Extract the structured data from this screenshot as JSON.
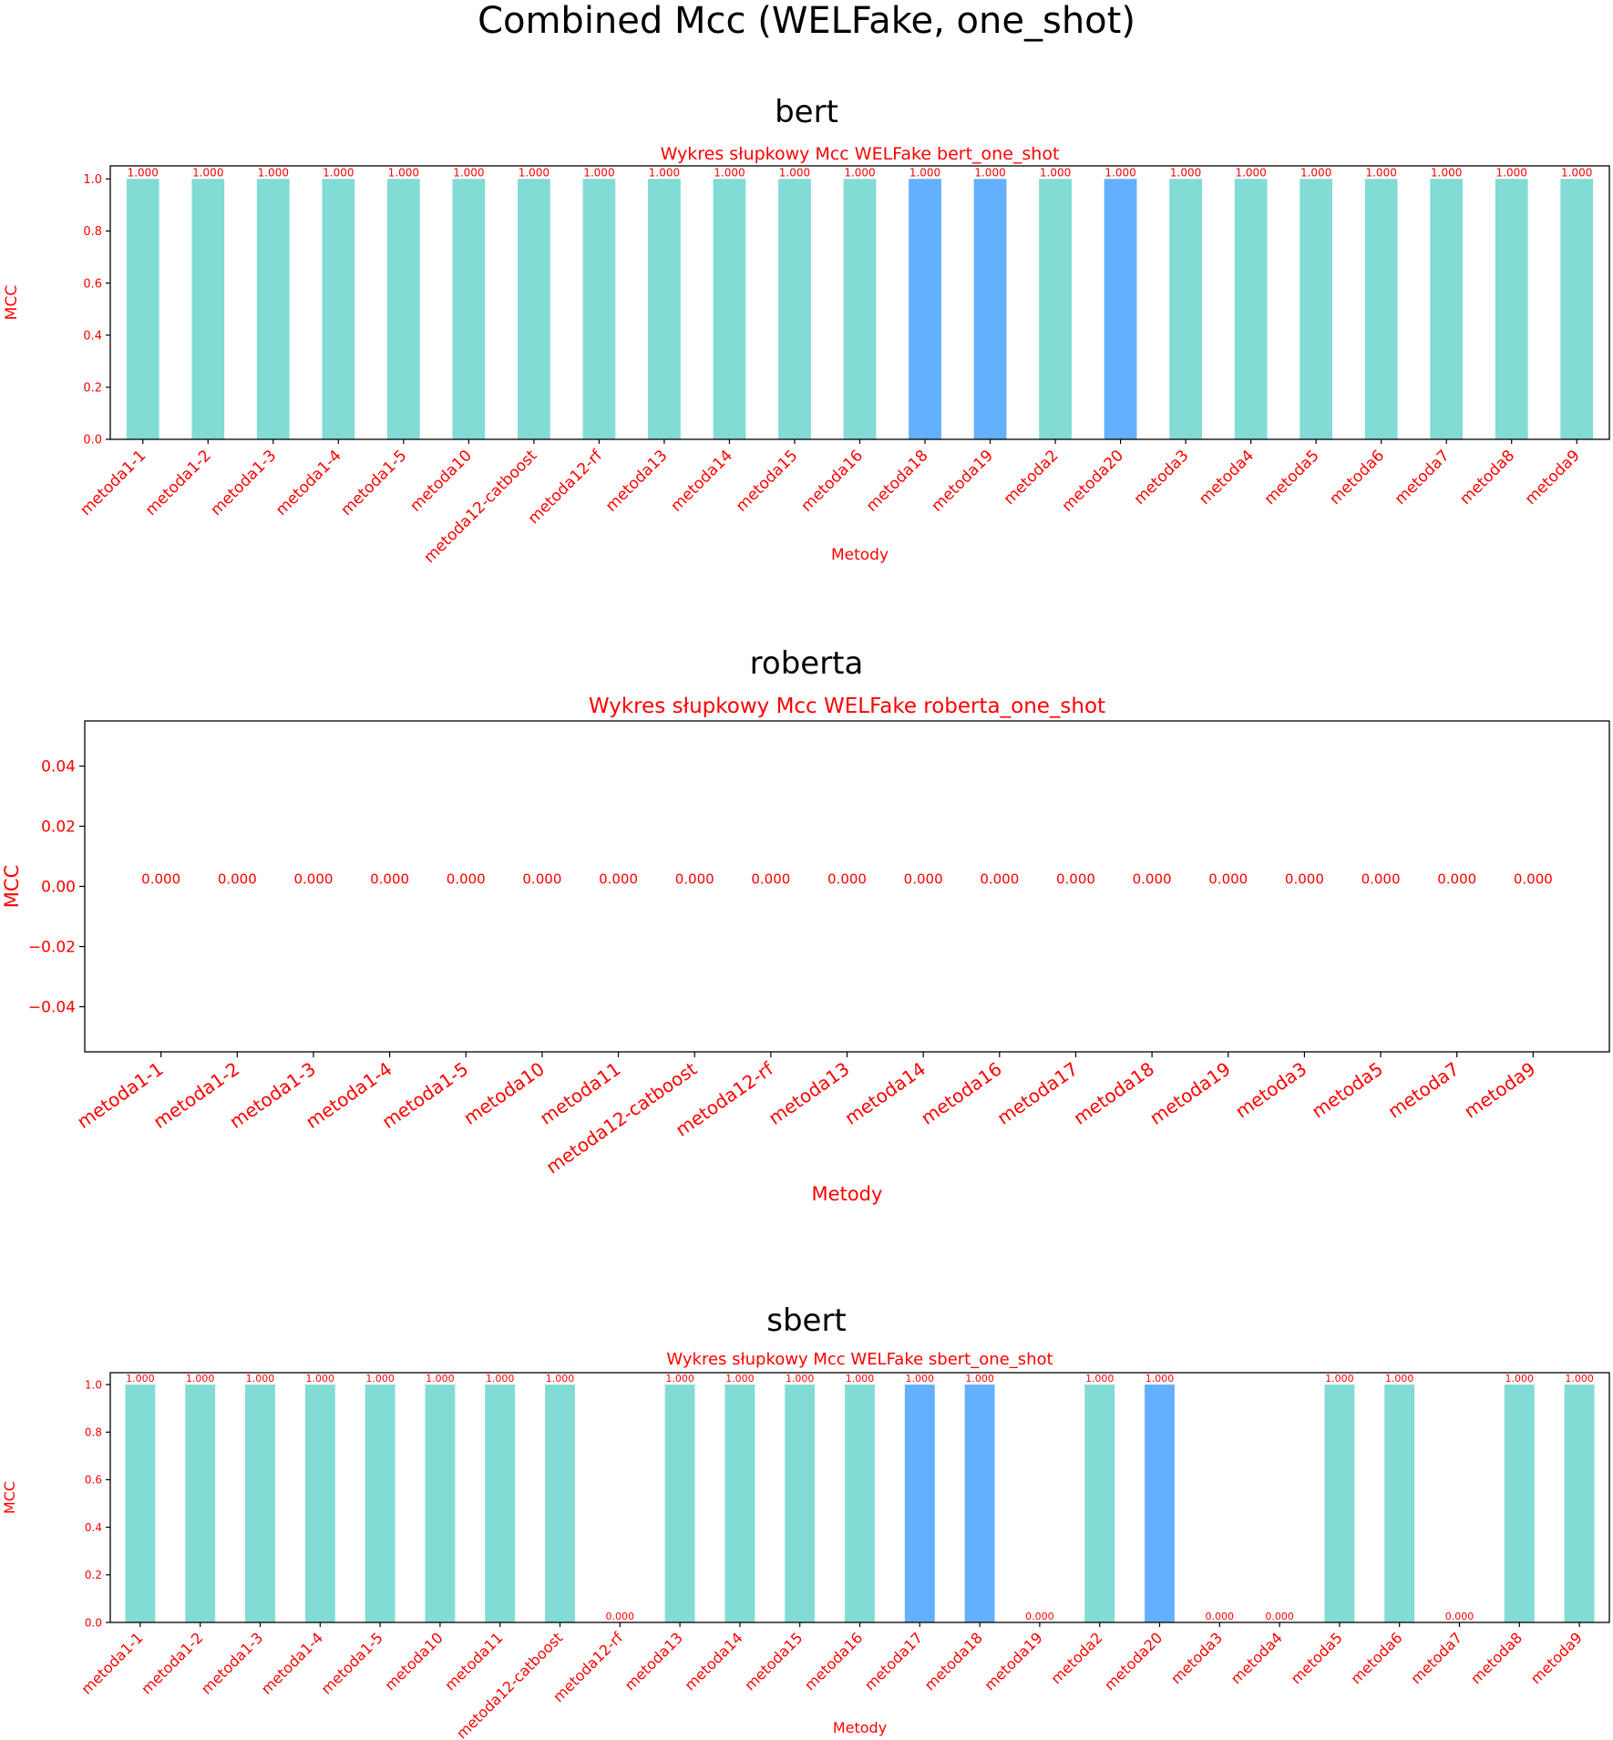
{
  "figure_title": "Combined Mcc (WELFake, one_shot)",
  "colors": {
    "text_accent": "#ff0000",
    "bar_default": "#82dbd5",
    "bar_highlight": "#63b0ff",
    "axis": "#000000"
  },
  "chart_data": [
    {
      "type": "bar",
      "panel_title": "bert",
      "title": "Wykres słupkowy Mcc WELFake bert_one_shot",
      "xlabel": "Metody",
      "ylabel": "MCC",
      "ylim": [
        0,
        1.05
      ],
      "yticks": [
        0.0,
        0.2,
        0.4,
        0.6,
        0.8,
        1.0
      ],
      "ytick_labels": [
        "0.0",
        "0.2",
        "0.4",
        "0.6",
        "0.8",
        "1.0"
      ],
      "grid": false,
      "categories": [
        "metoda1-1",
        "metoda1-2",
        "metoda1-3",
        "metoda1-4",
        "metoda1-5",
        "metoda10",
        "metoda12-catboost",
        "metoda12-rf",
        "metoda13",
        "metoda14",
        "metoda15",
        "metoda16",
        "metoda18",
        "metoda19",
        "metoda2",
        "metoda20",
        "metoda3",
        "metoda4",
        "metoda5",
        "metoda6",
        "metoda7",
        "metoda8",
        "metoda9"
      ],
      "values": [
        1,
        1,
        1,
        1,
        1,
        1,
        1,
        1,
        1,
        1,
        1,
        1,
        1,
        1,
        1,
        1,
        1,
        1,
        1,
        1,
        1,
        1,
        1
      ],
      "value_labels": [
        "1.000",
        "1.000",
        "1.000",
        "1.000",
        "1.000",
        "1.000",
        "1.000",
        "1.000",
        "1.000",
        "1.000",
        "1.000",
        "1.000",
        "1.000",
        "1.000",
        "1.000",
        "1.000",
        "1.000",
        "1.000",
        "1.000",
        "1.000",
        "1.000",
        "1.000",
        "1.000"
      ],
      "highlighted": [
        "metoda18",
        "metoda19",
        "metoda20"
      ]
    },
    {
      "type": "bar",
      "panel_title": "roberta",
      "title": "Wykres słupkowy Mcc WELFake roberta_one_shot",
      "xlabel": "Metody",
      "ylabel": "MCC",
      "ylim": [
        -0.055,
        0.055
      ],
      "yticks": [
        -0.04,
        -0.02,
        0.0,
        0.02,
        0.04
      ],
      "ytick_labels": [
        "−0.04",
        "−0.02",
        "0.00",
        "0.02",
        "0.04"
      ],
      "grid": false,
      "categories": [
        "metoda1-1",
        "metoda1-2",
        "metoda1-3",
        "metoda1-4",
        "metoda1-5",
        "metoda10",
        "metoda11",
        "metoda12-catboost",
        "metoda12-rf",
        "metoda13",
        "metoda14",
        "metoda16",
        "metoda17",
        "metoda18",
        "metoda19",
        "metoda3",
        "metoda5",
        "metoda7",
        "metoda9"
      ],
      "values": [
        0,
        0,
        0,
        0,
        0,
        0,
        0,
        0,
        0,
        0,
        0,
        0,
        0,
        0,
        0,
        0,
        0,
        0,
        0
      ],
      "value_labels": [
        "0.000",
        "0.000",
        "0.000",
        "0.000",
        "0.000",
        "0.000",
        "0.000",
        "0.000",
        "0.000",
        "0.000",
        "0.000",
        "0.000",
        "0.000",
        "0.000",
        "0.000",
        "0.000",
        "0.000",
        "0.000",
        "0.000"
      ],
      "highlighted": []
    },
    {
      "type": "bar",
      "panel_title": "sbert",
      "title": "Wykres słupkowy Mcc WELFake sbert_one_shot",
      "xlabel": "Metody",
      "ylabel": "MCC",
      "ylim": [
        0,
        1.05
      ],
      "yticks": [
        0.0,
        0.2,
        0.4,
        0.6,
        0.8,
        1.0
      ],
      "ytick_labels": [
        "0.0",
        "0.2",
        "0.4",
        "0.6",
        "0.8",
        "1.0"
      ],
      "grid": false,
      "categories": [
        "metoda1-1",
        "metoda1-2",
        "metoda1-3",
        "metoda1-4",
        "metoda1-5",
        "metoda10",
        "metoda11",
        "metoda12-catboost",
        "metoda12-rf",
        "metoda13",
        "metoda14",
        "metoda15",
        "metoda16",
        "metoda17",
        "metoda18",
        "metoda19",
        "metoda2",
        "metoda20",
        "metoda3",
        "metoda4",
        "metoda5",
        "metoda6",
        "metoda7",
        "metoda8",
        "metoda9"
      ],
      "values": [
        1,
        1,
        1,
        1,
        1,
        1,
        1,
        1,
        0,
        1,
        1,
        1,
        1,
        1,
        1,
        0,
        1,
        1,
        0,
        0,
        1,
        1,
        0,
        1,
        1
      ],
      "value_labels": [
        "1.000",
        "1.000",
        "1.000",
        "1.000",
        "1.000",
        "1.000",
        "1.000",
        "1.000",
        "0.000",
        "1.000",
        "1.000",
        "1.000",
        "1.000",
        "1.000",
        "1.000",
        "0.000",
        "1.000",
        "1.000",
        "0.000",
        "0.000",
        "1.000",
        "1.000",
        "0.000",
        "1.000",
        "1.000"
      ],
      "highlighted": [
        "metoda17",
        "metoda18",
        "metoda20"
      ]
    }
  ]
}
